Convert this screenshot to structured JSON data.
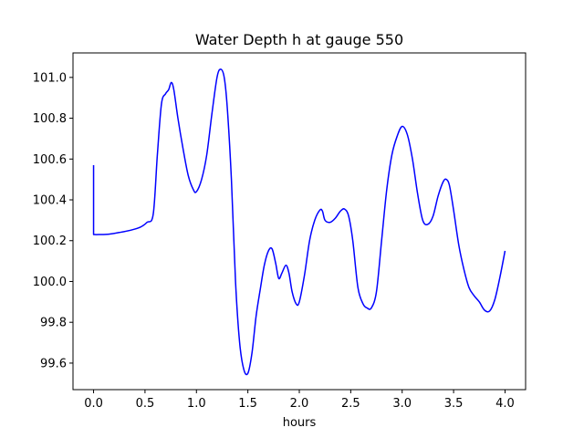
{
  "chart_data": {
    "type": "line",
    "title": "Water Depth h at gauge 550",
    "xlabel": "hours",
    "ylabel": "",
    "xlim": [
      -0.2,
      4.2
    ],
    "ylim": [
      99.47,
      101.12
    ],
    "xticks": [
      0.0,
      0.5,
      1.0,
      1.5,
      2.0,
      2.5,
      3.0,
      3.5,
      4.0
    ],
    "xtick_labels": [
      "0.0",
      "0.5",
      "1.0",
      "1.5",
      "2.0",
      "2.5",
      "3.0",
      "3.5",
      "4.0"
    ],
    "yticks": [
      99.6,
      99.8,
      100.0,
      100.2,
      100.4,
      100.6,
      100.8,
      101.0
    ],
    "ytick_labels": [
      "99.6",
      "99.8",
      "100.0",
      "100.2",
      "100.4",
      "100.6",
      "100.8",
      "101.0"
    ],
    "grid": false,
    "series": [
      {
        "color": "#0000ff",
        "x": [
          0.0,
          0.0,
          0.05,
          0.15,
          0.25,
          0.35,
          0.45,
          0.52,
          0.58,
          0.62,
          0.66,
          0.7,
          0.73,
          0.755,
          0.78,
          0.82,
          0.87,
          0.92,
          0.97,
          1.0,
          1.05,
          1.1,
          1.15,
          1.2,
          1.235,
          1.27,
          1.3,
          1.34,
          1.38,
          1.42,
          1.46,
          1.5,
          1.54,
          1.58,
          1.62,
          1.66,
          1.7,
          1.735,
          1.77,
          1.8,
          1.83,
          1.87,
          1.9,
          1.93,
          1.97,
          2.0,
          2.05,
          2.1,
          2.15,
          2.2,
          2.225,
          2.25,
          2.3,
          2.35,
          2.4,
          2.44,
          2.48,
          2.52,
          2.57,
          2.62,
          2.66,
          2.7,
          2.75,
          2.8,
          2.85,
          2.9,
          2.95,
          3.0,
          3.05,
          3.1,
          3.15,
          3.2,
          3.25,
          3.3,
          3.35,
          3.4,
          3.43,
          3.46,
          3.5,
          3.55,
          3.6,
          3.65,
          3.7,
          3.75,
          3.8,
          3.85,
          3.9,
          3.95,
          4.0
        ],
        "y": [
          100.57,
          100.23,
          100.23,
          100.232,
          100.24,
          100.25,
          100.265,
          100.29,
          100.33,
          100.62,
          100.87,
          100.92,
          100.94,
          100.975,
          100.94,
          100.8,
          100.65,
          100.52,
          100.45,
          100.44,
          100.5,
          100.62,
          100.82,
          101.0,
          101.04,
          101.0,
          100.85,
          100.5,
          100.0,
          99.7,
          99.57,
          99.55,
          99.65,
          99.83,
          99.96,
          100.08,
          100.15,
          100.16,
          100.09,
          100.015,
          100.04,
          100.08,
          100.04,
          99.95,
          99.89,
          99.9,
          100.03,
          100.2,
          100.3,
          100.35,
          100.345,
          100.3,
          100.29,
          100.31,
          100.345,
          100.355,
          100.32,
          100.2,
          99.97,
          99.89,
          99.87,
          99.87,
          99.95,
          100.2,
          100.45,
          100.62,
          100.71,
          100.76,
          100.72,
          100.6,
          100.43,
          100.3,
          100.28,
          100.32,
          100.42,
          100.49,
          100.5,
          100.47,
          100.35,
          100.18,
          100.06,
          99.97,
          99.93,
          99.9,
          99.86,
          99.855,
          99.91,
          100.02,
          100.15
        ]
      }
    ]
  }
}
